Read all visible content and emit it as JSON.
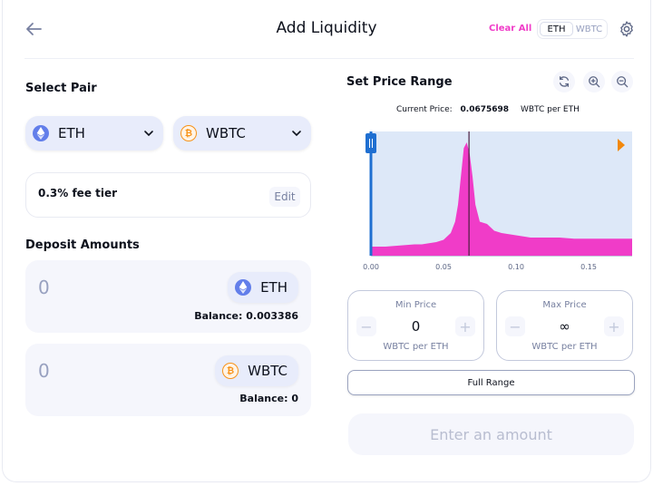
{
  "header": {
    "title": "Add Liquidity",
    "clear_all": "Clear All",
    "toggle": [
      "ETH",
      "WBTC"
    ]
  },
  "select_pair": {
    "label": "Select Pair",
    "token_a": "ETH",
    "token_b": "WBTC",
    "fee_tier": "0.3% fee tier",
    "edit": "Edit"
  },
  "deposit": {
    "label": "Deposit Amounts",
    "rows": [
      {
        "amount": "0",
        "token": "ETH",
        "balance": "Balance: 0.003386"
      },
      {
        "amount": "0",
        "token": "WBTC",
        "balance": "Balance: 0"
      }
    ]
  },
  "price_range": {
    "label": "Set Price Range",
    "current_price_label": "Current Price:",
    "current_price_value": "0.0675698",
    "current_price_unit": "WBTC per ETH",
    "min": {
      "title": "Min Price",
      "value": "0",
      "unit": "WBTC per ETH",
      "minus": "−",
      "plus": "+"
    },
    "max": {
      "title": "Max Price",
      "value": "∞",
      "unit": "WBTC per ETH",
      "minus": "−",
      "plus": "+"
    },
    "full_range": "Full Range"
  },
  "submit": {
    "label": "Enter an amount"
  },
  "colors": {
    "accent": "#f03cc8",
    "chart_fill": "#f03cc8",
    "chart_range_bg": "#dde8f8",
    "min_handle": "#1f6fd1",
    "max_handle": "#f2880c"
  },
  "chart_data": {
    "type": "area",
    "xlim": [
      0,
      0.18
    ],
    "x_ticks": [
      "0.00",
      "0.05",
      "0.10",
      "0.15"
    ],
    "x_tick_values": [
      0,
      0.05,
      0.1,
      0.15
    ],
    "current_price": 0.0675698,
    "range_min": 0,
    "range_max": "∞",
    "x": [
      0,
      0.01,
      0.02,
      0.03,
      0.035,
      0.04,
      0.045,
      0.05,
      0.055,
      0.058,
      0.06,
      0.062,
      0.064,
      0.066,
      0.068,
      0.07,
      0.072,
      0.075,
      0.08,
      0.085,
      0.09,
      0.1,
      0.11,
      0.12,
      0.13,
      0.14,
      0.15,
      0.16,
      0.17,
      0.18
    ],
    "y": [
      8,
      8,
      9,
      10,
      10,
      11,
      12,
      14,
      20,
      30,
      45,
      70,
      95,
      100,
      90,
      70,
      45,
      30,
      28,
      22,
      20,
      18,
      16,
      16,
      16,
      15,
      15,
      15,
      15,
      15
    ]
  }
}
